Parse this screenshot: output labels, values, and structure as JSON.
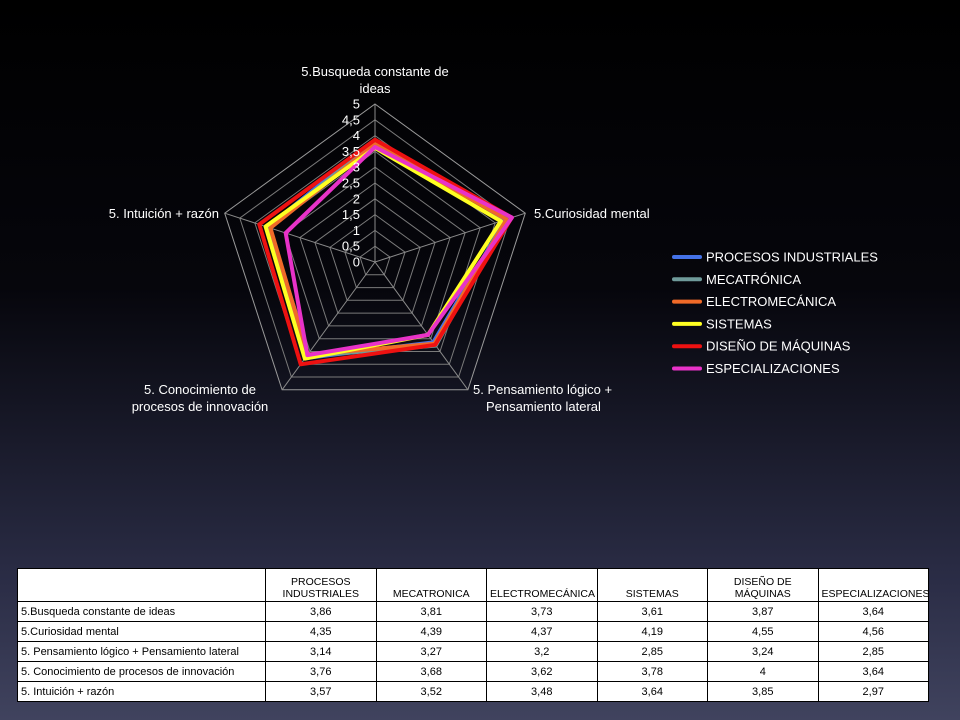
{
  "chart_data": {
    "type": "radar",
    "axes": [
      "5.Busqueda constante de ideas",
      "5.Curiosidad mental",
      "5. Pensamiento lógico + Pensamiento lateral",
      "5. Conocimiento de procesos de innovación",
      "5. Intuición + razón"
    ],
    "axis_label_lines": [
      [
        "5.Busqueda constante de",
        "ideas"
      ],
      [
        "5.Curiosidad mental"
      ],
      [
        "5. Pensamiento lógico +",
        "Pensamiento lateral"
      ],
      [
        "5. Conocimiento de",
        "procesos de innovación"
      ],
      [
        "5. Intuición + razón"
      ]
    ],
    "range": [
      0,
      5
    ],
    "ticks": [
      "0",
      "0,5",
      "1",
      "1,5",
      "2",
      "2,5",
      "3",
      "3,5",
      "4",
      "4,5",
      "5"
    ],
    "tick_values": [
      0,
      0.5,
      1,
      1.5,
      2,
      2.5,
      3,
      3.5,
      4,
      4.5,
      5
    ],
    "legend_position": "right",
    "series": [
      {
        "name": "PROCESOS INDUSTRIALES",
        "color": "#4472e8",
        "values": [
          3.86,
          4.35,
          3.14,
          3.76,
          3.57
        ]
      },
      {
        "name": "MECATRÓNICA",
        "color": "#6f9a9a",
        "values": [
          3.81,
          4.39,
          3.27,
          3.68,
          3.52
        ]
      },
      {
        "name": "ELECTROMECÁNICA",
        "color": "#f06a28",
        "values": [
          3.73,
          4.37,
          3.2,
          3.62,
          3.48
        ]
      },
      {
        "name": "SISTEMAS",
        "color": "#ffff22",
        "values": [
          3.61,
          4.19,
          2.85,
          3.78,
          3.64
        ]
      },
      {
        "name": "DISEÑO DE MÁQUINAS",
        "color": "#ee1111",
        "values": [
          3.87,
          4.55,
          3.24,
          4,
          3.85
        ]
      },
      {
        "name": "ESPECIALIZACIONES",
        "color": "#e832c8",
        "values": [
          3.64,
          4.56,
          2.85,
          3.64,
          2.97
        ]
      }
    ]
  },
  "table": {
    "columns": [
      "PROCESOS INDUSTRIALES",
      "MECATRONICA",
      "ELECTROMECÁNICA",
      "SISTEMAS",
      "DISEÑO DE MÁQUINAS",
      "ESPECIALIZACIONES"
    ],
    "rows": [
      {
        "label": "5.Busqueda constante de ideas",
        "cells": [
          "3,86",
          "3,81",
          "3,73",
          "3,61",
          "3,87",
          "3,64"
        ]
      },
      {
        "label": "5.Curiosidad mental",
        "cells": [
          "4,35",
          "4,39",
          "4,37",
          "4,19",
          "4,55",
          "4,56"
        ]
      },
      {
        "label": "5. Pensamiento lógico + Pensamiento lateral",
        "cells": [
          "3,14",
          "3,27",
          "3,2",
          "2,85",
          "3,24",
          "2,85"
        ]
      },
      {
        "label": "5. Conocimiento de procesos de innovación",
        "cells": [
          "3,76",
          "3,68",
          "3,62",
          "3,78",
          "4",
          "3,64"
        ]
      },
      {
        "label": "5. Intuición + razón",
        "cells": [
          "3,57",
          "3,52",
          "3,48",
          "3,64",
          "3,85",
          "2,97"
        ]
      }
    ]
  }
}
